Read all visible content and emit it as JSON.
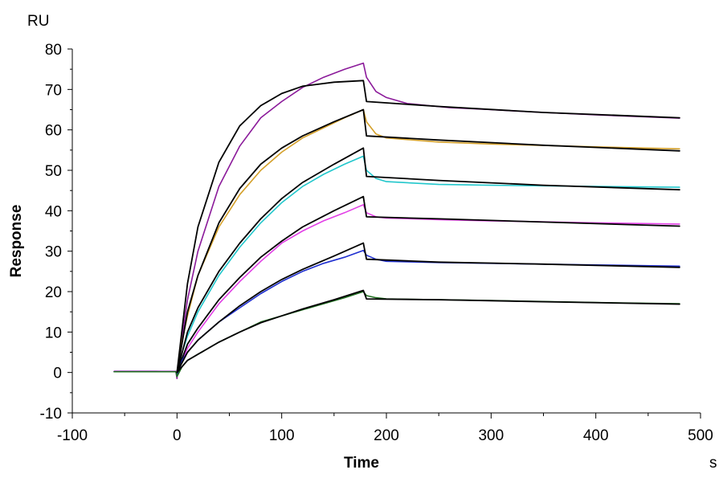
{
  "chart_data": {
    "type": "line",
    "title": "",
    "xlabel": "Time",
    "ylabel": "Response",
    "x_unit": "s",
    "y_unit": "RU",
    "xlim": [
      -100,
      500
    ],
    "ylim": [
      -10,
      80
    ],
    "x_ticks": [
      -100,
      0,
      100,
      200,
      300,
      400,
      500
    ],
    "y_ticks": [
      -10,
      0,
      10,
      20,
      30,
      40,
      50,
      60,
      70,
      80
    ],
    "grid": false,
    "legend": "none",
    "series": [
      {
        "color": "#8B1A9A",
        "points": [
          [
            -60,
            0.3
          ],
          [
            -20,
            0.3
          ],
          [
            -1,
            0.2
          ],
          [
            0,
            -1.5
          ],
          [
            2,
            3.5
          ],
          [
            10,
            18
          ],
          [
            20,
            30
          ],
          [
            40,
            46
          ],
          [
            60,
            56
          ],
          [
            80,
            63
          ],
          [
            100,
            67
          ],
          [
            120,
            70.5
          ],
          [
            140,
            73
          ],
          [
            160,
            75
          ],
          [
            178,
            76.5
          ],
          [
            181,
            73
          ],
          [
            190,
            69.5
          ],
          [
            200,
            68
          ],
          [
            220,
            66.5
          ],
          [
            260,
            65.5
          ],
          [
            300,
            65
          ],
          [
            350,
            64.3
          ],
          [
            400,
            63.7
          ],
          [
            450,
            63.2
          ],
          [
            480,
            62.9
          ]
        ]
      },
      {
        "color": "#000000",
        "points": [
          [
            0,
            0
          ],
          [
            10,
            22
          ],
          [
            20,
            36
          ],
          [
            40,
            52
          ],
          [
            60,
            61
          ],
          [
            80,
            66
          ],
          [
            100,
            69
          ],
          [
            120,
            70.8
          ],
          [
            150,
            71.8
          ],
          [
            178,
            72.2
          ],
          [
            181,
            67
          ],
          [
            250,
            65.8
          ],
          [
            350,
            64.3
          ],
          [
            480,
            63
          ]
        ]
      },
      {
        "color": "#D4A02A",
        "points": [
          [
            -60,
            0.2
          ],
          [
            -1,
            0.2
          ],
          [
            0,
            -1
          ],
          [
            5,
            8
          ],
          [
            10,
            14
          ],
          [
            20,
            24
          ],
          [
            40,
            36
          ],
          [
            60,
            44
          ],
          [
            80,
            50
          ],
          [
            100,
            54.5
          ],
          [
            120,
            58
          ],
          [
            140,
            60.5
          ],
          [
            160,
            63
          ],
          [
            178,
            65
          ],
          [
            181,
            62
          ],
          [
            190,
            59
          ],
          [
            200,
            58
          ],
          [
            250,
            57
          ],
          [
            300,
            56.5
          ],
          [
            400,
            55.8
          ],
          [
            480,
            55.3
          ]
        ]
      },
      {
        "color": "#000000",
        "points": [
          [
            0,
            0
          ],
          [
            10,
            15
          ],
          [
            20,
            24
          ],
          [
            40,
            37
          ],
          [
            60,
            45.5
          ],
          [
            80,
            51.5
          ],
          [
            100,
            55.5
          ],
          [
            120,
            58.5
          ],
          [
            150,
            62
          ],
          [
            178,
            65
          ],
          [
            181,
            58.5
          ],
          [
            250,
            57.5
          ],
          [
            350,
            56.2
          ],
          [
            480,
            54.8
          ]
        ]
      },
      {
        "color": "#22C7CC",
        "points": [
          [
            -60,
            0.2
          ],
          [
            -1,
            0.2
          ],
          [
            0,
            -1
          ],
          [
            5,
            5
          ],
          [
            10,
            9
          ],
          [
            20,
            15
          ],
          [
            40,
            24
          ],
          [
            60,
            31
          ],
          [
            80,
            37
          ],
          [
            100,
            42
          ],
          [
            120,
            46
          ],
          [
            140,
            49
          ],
          [
            160,
            51.5
          ],
          [
            178,
            53.5
          ],
          [
            181,
            50
          ],
          [
            190,
            48
          ],
          [
            200,
            47.2
          ],
          [
            250,
            46.5
          ],
          [
            300,
            46.3
          ],
          [
            400,
            46
          ],
          [
            480,
            45.8
          ]
        ]
      },
      {
        "color": "#000000",
        "points": [
          [
            0,
            0
          ],
          [
            10,
            10
          ],
          [
            20,
            16
          ],
          [
            40,
            25
          ],
          [
            60,
            32
          ],
          [
            80,
            38
          ],
          [
            100,
            43
          ],
          [
            120,
            47
          ],
          [
            150,
            51.5
          ],
          [
            178,
            55.5
          ],
          [
            181,
            48.5
          ],
          [
            250,
            47.5
          ],
          [
            350,
            46.3
          ],
          [
            480,
            45.2
          ]
        ]
      },
      {
        "color": "#E23FE6",
        "points": [
          [
            -60,
            0.3
          ],
          [
            -1,
            0.3
          ],
          [
            0,
            -1
          ],
          [
            5,
            3
          ],
          [
            10,
            6
          ],
          [
            20,
            10
          ],
          [
            40,
            17
          ],
          [
            60,
            22.5
          ],
          [
            80,
            27.5
          ],
          [
            100,
            32
          ],
          [
            120,
            35
          ],
          [
            140,
            37.5
          ],
          [
            160,
            39.5
          ],
          [
            178,
            41.5
          ],
          [
            181,
            39.5
          ],
          [
            190,
            38.5
          ],
          [
            200,
            38.2
          ],
          [
            250,
            37.8
          ],
          [
            300,
            37.5
          ],
          [
            400,
            37
          ],
          [
            480,
            36.7
          ]
        ]
      },
      {
        "color": "#000000",
        "points": [
          [
            0,
            0
          ],
          [
            10,
            7
          ],
          [
            20,
            11
          ],
          [
            40,
            18
          ],
          [
            60,
            23.5
          ],
          [
            80,
            28.5
          ],
          [
            100,
            32.5
          ],
          [
            120,
            36
          ],
          [
            150,
            40
          ],
          [
            178,
            43.5
          ],
          [
            181,
            38.5
          ],
          [
            250,
            38
          ],
          [
            350,
            37.2
          ],
          [
            480,
            36.2
          ]
        ]
      },
      {
        "color": "#1F2FD0",
        "points": [
          [
            -60,
            0.2
          ],
          [
            -1,
            0.2
          ],
          [
            0,
            -1
          ],
          [
            5,
            3
          ],
          [
            10,
            5
          ],
          [
            20,
            8
          ],
          [
            40,
            12.5
          ],
          [
            60,
            16
          ],
          [
            80,
            19.5
          ],
          [
            100,
            22.5
          ],
          [
            120,
            25
          ],
          [
            140,
            27
          ],
          [
            160,
            28.5
          ],
          [
            178,
            30.2
          ],
          [
            181,
            29
          ],
          [
            190,
            28
          ],
          [
            200,
            27.5
          ],
          [
            250,
            27.2
          ],
          [
            300,
            27
          ],
          [
            400,
            26.6
          ],
          [
            480,
            26.3
          ]
        ]
      },
      {
        "color": "#000000",
        "points": [
          [
            0,
            0
          ],
          [
            10,
            5
          ],
          [
            20,
            8
          ],
          [
            40,
            12.5
          ],
          [
            60,
            16.5
          ],
          [
            80,
            20
          ],
          [
            100,
            23
          ],
          [
            120,
            25.5
          ],
          [
            150,
            28.8
          ],
          [
            178,
            32
          ],
          [
            181,
            28
          ],
          [
            250,
            27.3
          ],
          [
            350,
            26.8
          ],
          [
            480,
            26
          ]
        ]
      },
      {
        "color": "#1E6E1E",
        "points": [
          [
            -60,
            0.2
          ],
          [
            -1,
            0.2
          ],
          [
            0,
            -1
          ],
          [
            5,
            1.5
          ],
          [
            10,
            3
          ],
          [
            20,
            4.5
          ],
          [
            40,
            7.5
          ],
          [
            60,
            10
          ],
          [
            80,
            12.5
          ],
          [
            100,
            14
          ],
          [
            120,
            15.5
          ],
          [
            140,
            17
          ],
          [
            160,
            18.5
          ],
          [
            178,
            20
          ],
          [
            181,
            19
          ],
          [
            190,
            18.5
          ],
          [
            200,
            18.2
          ],
          [
            250,
            18
          ],
          [
            300,
            17.8
          ],
          [
            400,
            17.3
          ],
          [
            480,
            17
          ]
        ]
      },
      {
        "color": "#000000",
        "points": [
          [
            0,
            0
          ],
          [
            10,
            3
          ],
          [
            20,
            4.5
          ],
          [
            40,
            7.5
          ],
          [
            60,
            10
          ],
          [
            80,
            12.3
          ],
          [
            100,
            14
          ],
          [
            120,
            15.7
          ],
          [
            150,
            18
          ],
          [
            178,
            20.3
          ],
          [
            181,
            18.2
          ],
          [
            250,
            18
          ],
          [
            350,
            17.5
          ],
          [
            480,
            16.9
          ]
        ]
      }
    ]
  }
}
